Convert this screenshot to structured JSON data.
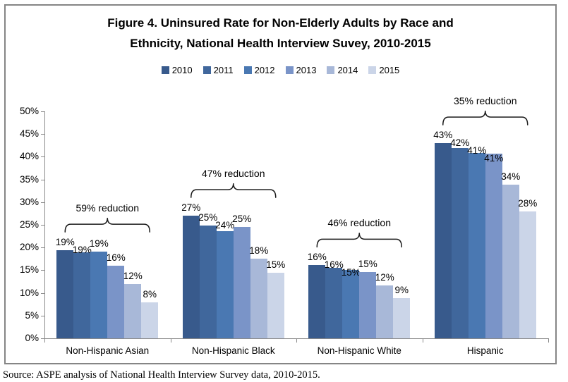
{
  "title": {
    "line1": "Figure 4. Uninsured Rate for Non-Elderly Adults by Race and",
    "line2": "Ethnicity, National Health Interview Suvey, 2010-2015"
  },
  "source_note": "Source: ASPE analysis of National Health Interview Survey data, 2010-2015.",
  "chart_data": {
    "type": "bar",
    "title": "Figure 4. Uninsured Rate for Non-Elderly Adults by Race and Ethnicity, National Health Interview Suvey, 2010-2015",
    "grid": false,
    "legend": {
      "position": "top",
      "entries": [
        "2010",
        "2011",
        "2012",
        "2013",
        "2014",
        "2015"
      ]
    },
    "categories": [
      "Non-Hispanic Asian",
      "Non-Hispanic Black",
      "Non-Hispanic White",
      "Hispanic"
    ],
    "series": [
      {
        "name": "2010",
        "color": "#385A8C",
        "values": [
          19.4,
          27.0,
          16.1,
          43.0
        ],
        "labels": [
          "19%",
          "27%",
          "16%",
          "43%"
        ]
      },
      {
        "name": "2011",
        "color": "#40679C",
        "values": [
          18.9,
          24.8,
          15.6,
          41.9
        ],
        "labels": [
          "19%",
          "25%",
          "16%",
          "42%"
        ]
      },
      {
        "name": "2012",
        "color": "#4A78B2",
        "values": [
          19.1,
          23.6,
          15.0,
          40.8
        ],
        "labels": [
          "19%",
          "24%",
          "15%",
          "41%"
        ]
      },
      {
        "name": "2013",
        "color": "#7A94C8",
        "values": [
          16.0,
          24.5,
          14.6,
          40.7
        ],
        "labels": [
          "16%",
          "25%",
          "15%",
          "41%"
        ]
      },
      {
        "name": "2014",
        "color": "#A8B8D8",
        "values": [
          11.9,
          17.5,
          11.6,
          33.9
        ],
        "labels": [
          "12%",
          "18%",
          "12%",
          "34%"
        ]
      },
      {
        "name": "2015",
        "color": "#CBD5E8",
        "values": [
          8.0,
          14.5,
          8.8,
          28.0
        ],
        "labels": [
          "8%",
          "15%",
          "9%",
          "28%"
        ]
      }
    ],
    "annotations": [
      {
        "category": "Non-Hispanic Asian",
        "text": "59% reduction"
      },
      {
        "category": "Non-Hispanic Black",
        "text": "47% reduction"
      },
      {
        "category": "Non-Hispanic White",
        "text": "46% reduction"
      },
      {
        "category": "Hispanic",
        "text": "35% reduction"
      }
    ],
    "y_axis": {
      "min": 0,
      "max": 50,
      "step": 5,
      "tick_labels": [
        "0%",
        "5%",
        "10%",
        "15%",
        "20%",
        "25%",
        "30%",
        "35%",
        "40%",
        "45%",
        "50%"
      ]
    },
    "style": {
      "axis_color": "#8A8A8A",
      "panel_border_color": "#858585",
      "text_color": "#000000"
    }
  }
}
